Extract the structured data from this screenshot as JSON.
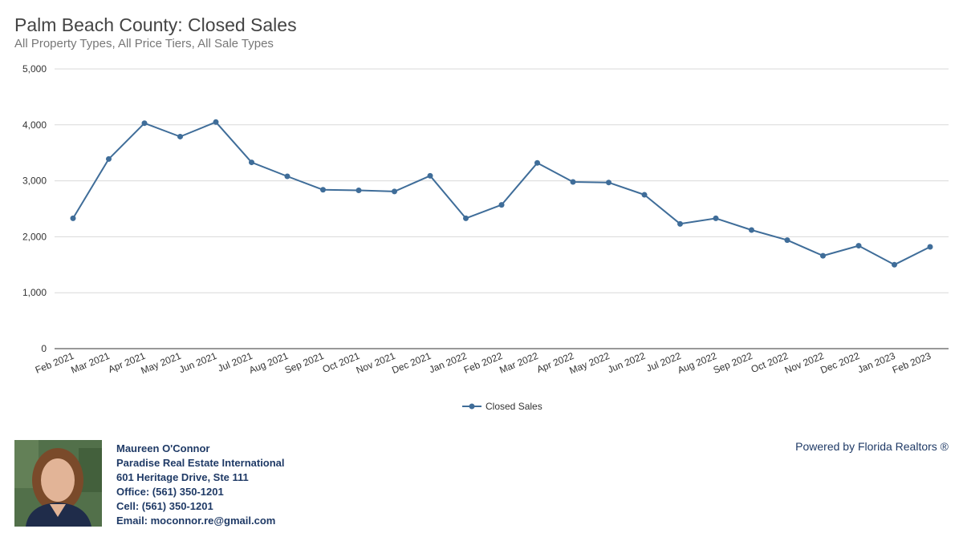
{
  "chart_data": {
    "type": "line",
    "title": "Palm Beach County: Closed Sales",
    "subtitle": "All Property Types, All Price Tiers, All Sale Types",
    "categories": [
      "Feb 2021",
      "Mar 2021",
      "Apr 2021",
      "May 2021",
      "Jun 2021",
      "Jul 2021",
      "Aug 2021",
      "Sep 2021",
      "Oct 2021",
      "Nov 2021",
      "Dec 2021",
      "Jan 2022",
      "Feb 2022",
      "Mar 2022",
      "Apr 2022",
      "May 2022",
      "Jun 2022",
      "Jul 2022",
      "Aug 2022",
      "Sep 2022",
      "Oct 2022",
      "Nov 2022",
      "Dec 2022",
      "Jan 2023",
      "Feb 2023"
    ],
    "series": [
      {
        "name": "Closed Sales",
        "values": [
          2330,
          3390,
          4030,
          3790,
          4050,
          3330,
          3080,
          2840,
          2830,
          2810,
          3090,
          2330,
          2570,
          3320,
          2980,
          2970,
          2750,
          2230,
          2330,
          2120,
          1940,
          1660,
          1840,
          1500,
          1820
        ]
      }
    ],
    "yticks": [
      0,
      1000,
      2000,
      3000,
      4000,
      5000
    ],
    "ytick_labels": [
      "0",
      "1,000",
      "2,000",
      "3,000",
      "4,000",
      "5,000"
    ],
    "ylim": [
      0,
      5000
    ],
    "grid": true,
    "legend": "bottom-center",
    "line_color": "#3f6d99"
  },
  "agent": {
    "name": "Maureen O'Connor",
    "company": "Paradise Real Estate International",
    "address": "601 Heritage Drive, Ste 111",
    "office": "Office: (561) 350-1201",
    "cell": "Cell: (561) 350-1201",
    "email": "Email: moconnor.re@gmail.com"
  },
  "powered_by": "Powered by Florida Realtors ®"
}
